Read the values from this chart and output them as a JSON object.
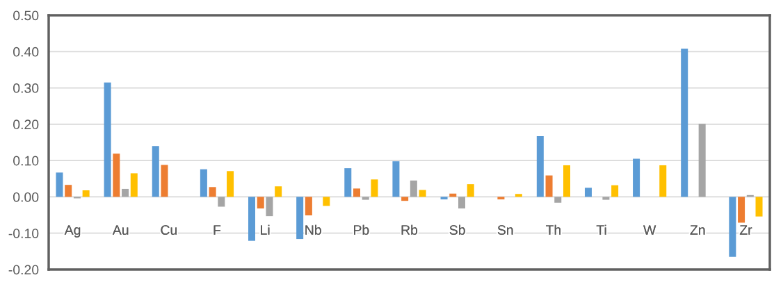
{
  "chart_data": {
    "type": "bar",
    "categories": [
      "Ag",
      "Au",
      "Cu",
      "F",
      "Li",
      "Nb",
      "Pb",
      "Rb",
      "Sb",
      "Sn",
      "Th",
      "Ti",
      "W",
      "Zn",
      "Zr"
    ],
    "series": [
      {
        "color": "#5b9bd5",
        "values": [
          0.067,
          0.315,
          0.14,
          0.076,
          -0.121,
          -0.116,
          0.079,
          0.098,
          -0.007,
          null,
          0.167,
          0.025,
          0.105,
          0.408,
          -0.165
        ]
      },
      {
        "color": "#ed7d31",
        "values": [
          0.033,
          0.119,
          0.088,
          0.027,
          -0.032,
          -0.051,
          0.023,
          -0.011,
          0.009,
          -0.007,
          0.059,
          null,
          null,
          null,
          -0.071
        ]
      },
      {
        "color": "#a5a5a5",
        "values": [
          -0.004,
          0.022,
          null,
          -0.027,
          -0.053,
          null,
          -0.008,
          0.045,
          -0.032,
          null,
          -0.016,
          -0.008,
          null,
          0.201,
          0.005
        ]
      },
      {
        "color": "#ffc000",
        "values": [
          0.018,
          0.065,
          null,
          0.071,
          0.029,
          -0.025,
          0.048,
          0.019,
          0.035,
          0.008,
          0.087,
          0.032,
          0.087,
          null,
          -0.054
        ]
      }
    ],
    "ylim": [
      -0.2,
      0.5
    ],
    "yticks": [
      {
        "value": -0.2,
        "label": "-0.20"
      },
      {
        "value": -0.1,
        "label": "-0.10"
      },
      {
        "value": 0.0,
        "label": "0.00"
      },
      {
        "value": 0.1,
        "label": "0.10"
      },
      {
        "value": 0.2,
        "label": "0.20"
      },
      {
        "value": 0.3,
        "label": "0.30"
      },
      {
        "value": 0.4,
        "label": "0.40"
      },
      {
        "value": 0.5,
        "label": "0.50"
      }
    ],
    "grid": "y"
  }
}
